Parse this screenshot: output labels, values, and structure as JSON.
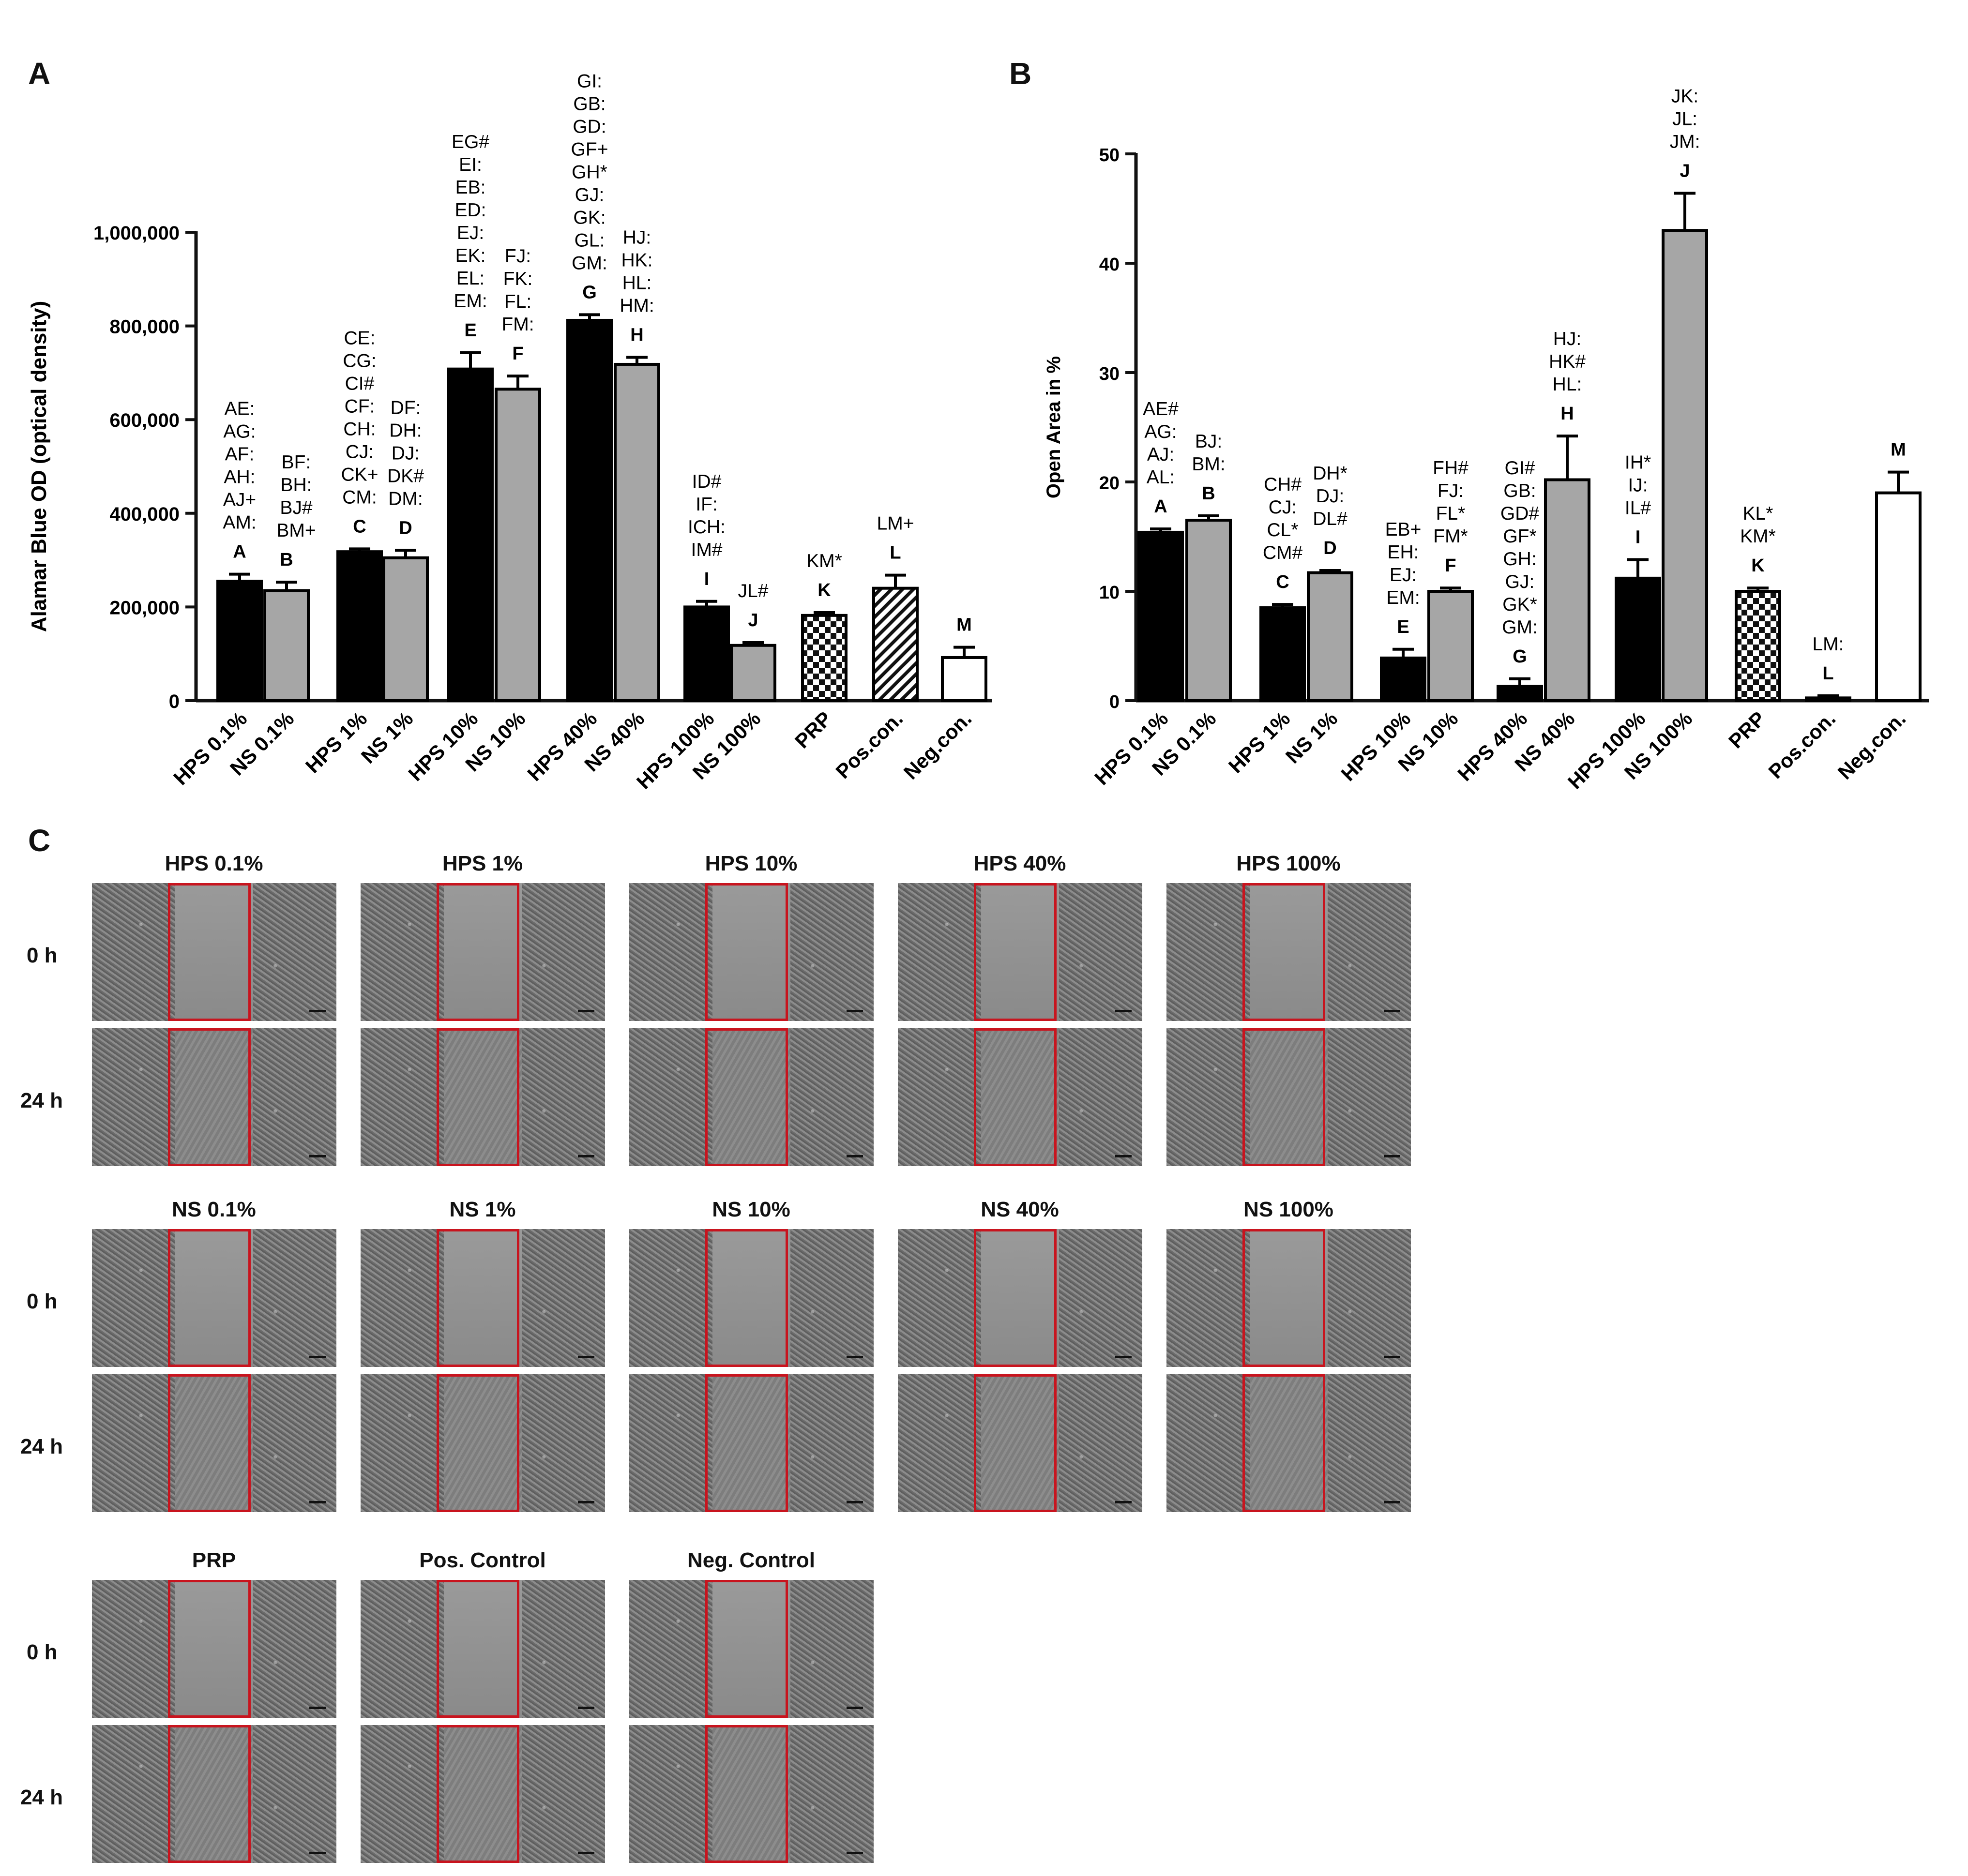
{
  "panels": {
    "a": "A",
    "b": "B",
    "c": "C"
  },
  "chart_data": [
    {
      "type": "bar",
      "panel": "A",
      "ylabel": "Alamar Blue OD (optical density)",
      "ylim": [
        0,
        1000000
      ],
      "yticks": [
        "0",
        "200,000",
        "400,000",
        "600,000",
        "800,000",
        "1,000,000"
      ],
      "ytick_values": [
        0,
        200000,
        400000,
        600000,
        800000,
        1000000
      ],
      "categories": [
        "HPS 0.1%",
        "NS 0.1%",
        "HPS 1%",
        "NS 1%",
        "HPS 10%",
        "NS 10%",
        "HPS 40%",
        "NS 40%",
        "HPS 100%",
        "NS 100%",
        "PRP",
        "Pos.con.",
        "Neg.con."
      ],
      "letters": [
        "A",
        "B",
        "C",
        "D",
        "E",
        "F",
        "G",
        "H",
        "I",
        "J",
        "K",
        "L",
        "M"
      ],
      "values": [
        255000,
        235000,
        318000,
        305000,
        708000,
        665000,
        812000,
        718000,
        200000,
        118000,
        182000,
        240000,
        92000
      ],
      "errors": [
        15000,
        18000,
        6000,
        16000,
        35000,
        28000,
        12000,
        15000,
        12000,
        6000,
        6000,
        28000,
        22000
      ],
      "fills": [
        "black",
        "gray",
        "black",
        "gray",
        "black",
        "gray",
        "black",
        "gray",
        "black",
        "gray",
        "checker",
        "hatch",
        "white"
      ],
      "annotations": [
        [
          "AE:",
          "AG:",
          "AF:",
          "AH:",
          "AJ+",
          "AM:"
        ],
        [
          "BF:",
          "BH:",
          "BJ#",
          "BM+"
        ],
        [
          "CE:",
          "CG:",
          "CI#",
          "CF:",
          "CH:",
          "CJ:",
          "CK+",
          "CM:"
        ],
        [
          "DF:",
          "DH:",
          "DJ:",
          "DK#",
          "DM:"
        ],
        [
          "EG#",
          "EI:",
          "EB:",
          "ED:",
          "EJ:",
          "EK:",
          "EL:",
          "EM:"
        ],
        [
          "FJ:",
          "FK:",
          "FL:",
          "FM:"
        ],
        [
          "GI:",
          "GB:",
          "GD:",
          "GF+",
          "GH*",
          "GJ:",
          "GK:",
          "GL:",
          "GM:"
        ],
        [
          "HJ:",
          "HK:",
          "HL:",
          "HM:"
        ],
        [
          "ID#",
          "IF:",
          "ICH:",
          "IM#"
        ],
        [
          "JL#"
        ],
        [
          "KM*"
        ],
        [
          "LM+"
        ],
        []
      ]
    },
    {
      "type": "bar",
      "panel": "B",
      "ylabel": "Open Area in %",
      "ylim": [
        0,
        50
      ],
      "yticks": [
        "0",
        "10",
        "20",
        "30",
        "40",
        "50"
      ],
      "ytick_values": [
        0,
        10,
        20,
        30,
        40,
        50
      ],
      "categories": [
        "HPS 0.1%",
        "NS 0.1%",
        "HPS 1%",
        "NS 1%",
        "HPS 10%",
        "NS 10%",
        "HPS 40%",
        "NS 40%",
        "HPS 100%",
        "NS 100%",
        "PRP",
        "Pos.con.",
        "Neg.con."
      ],
      "letters": [
        "A",
        "B",
        "C",
        "D",
        "E",
        "F",
        "G",
        "H",
        "I",
        "J",
        "K",
        "L",
        "M"
      ],
      "values": [
        15.4,
        16.5,
        8.5,
        11.7,
        3.9,
        10.0,
        1.3,
        20.2,
        11.2,
        43.0,
        10.0,
        0.25,
        19.0
      ],
      "errors": [
        0.3,
        0.4,
        0.3,
        0.2,
        0.8,
        0.3,
        0.7,
        4.0,
        1.7,
        3.4,
        0.3,
        0.2,
        1.9
      ],
      "fills": [
        "black",
        "gray",
        "black",
        "gray",
        "black",
        "gray",
        "black",
        "gray",
        "black",
        "gray",
        "checker",
        "hatch",
        "white"
      ],
      "annotations": [
        [
          "AE#",
          "AG:",
          "AJ:",
          "AL:"
        ],
        [
          "BJ:",
          "BM:"
        ],
        [
          "CH#",
          "CJ:",
          "CL*",
          "CM#"
        ],
        [
          "DH*",
          "DJ:",
          "DL#"
        ],
        [
          "EB+",
          "EH:",
          "EJ:",
          "EM:"
        ],
        [
          "FH#",
          "FJ:",
          "FL*",
          "FM*"
        ],
        [
          "GI#",
          "GB:",
          "GD#",
          "GF*",
          "GH:",
          "GJ:",
          "GK*",
          "GM:"
        ],
        [
          "HJ:",
          "HK#",
          "HL:"
        ],
        [
          "IH*",
          "IJ:",
          "IL#"
        ],
        [
          "JK:",
          "JL:",
          "JM:"
        ],
        [
          "KL*",
          "KM*"
        ],
        [
          "LM:"
        ],
        []
      ]
    }
  ],
  "panel_c": {
    "groups": [
      {
        "titles": [
          "HPS 0.1%",
          "HPS 1%",
          "HPS 10%",
          "HPS 40%",
          "HPS 100%"
        ]
      },
      {
        "titles": [
          "NS 0.1%",
          "NS 1%",
          "NS 10%",
          "NS 40%",
          "NS 100%"
        ]
      },
      {
        "titles": [
          "PRP",
          "Pos. Control",
          "Neg. Control"
        ]
      }
    ],
    "row_labels": {
      "t0": "0 h",
      "t24": "24 h"
    },
    "box_color": "#c8141e"
  }
}
